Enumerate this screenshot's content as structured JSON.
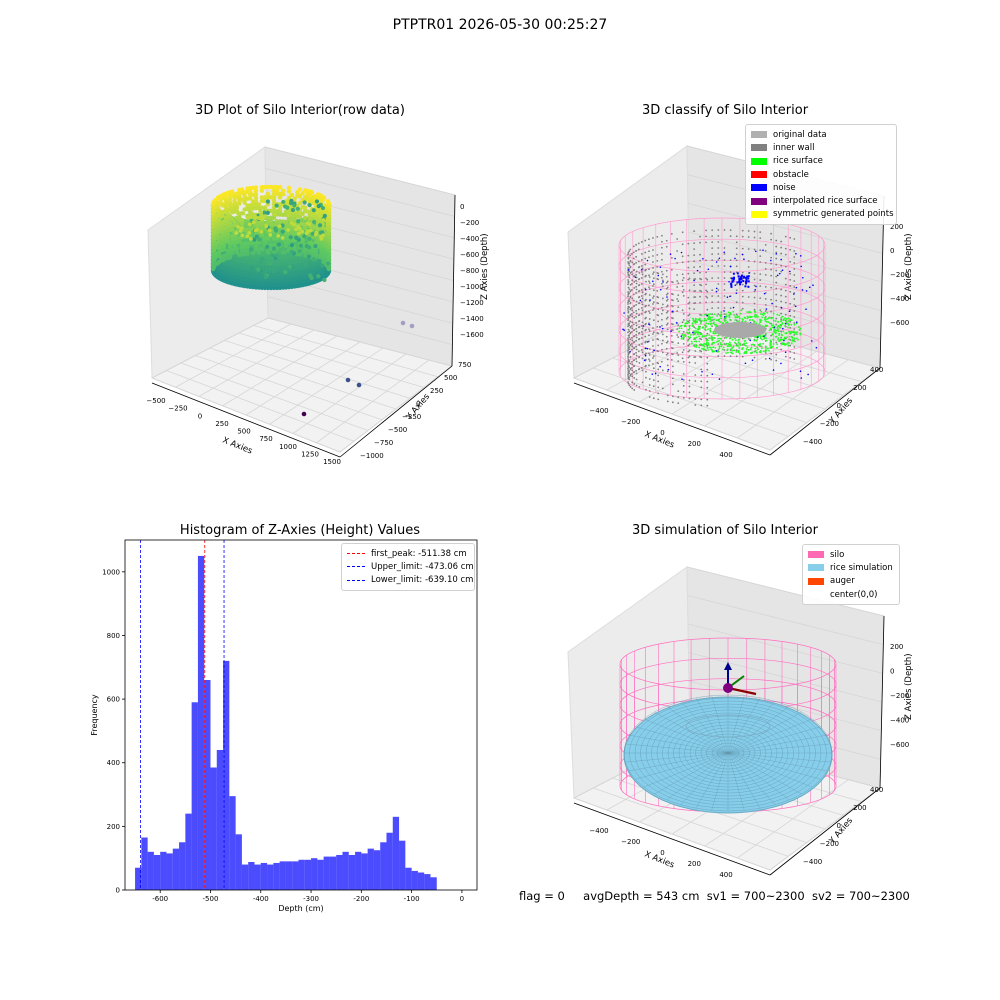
{
  "page": {
    "title": "PTPTR01 2026-05-30 00:25:27",
    "status": {
      "flag": "flag = 0",
      "avg_depth": "avgDepth = 543 cm",
      "sv1": "sv1 = 700~2300",
      "sv2": "sv2 = 700~2300"
    }
  },
  "chart_data": [
    {
      "type": "scatter",
      "title": "3D Plot of Silo Interior(row data)",
      "xlabel": "X Axies",
      "ylabel": "Y Axies",
      "zlabel": "Z Axies (Depth)",
      "x_ticks": [
        "−500",
        "−250",
        "0",
        "250",
        "500",
        "750",
        "1000",
        "1250",
        "1500"
      ],
      "y_ticks": [
        "−1000",
        "−750",
        "−500",
        "−250",
        "0",
        "250",
        "500",
        "750"
      ],
      "z_ticks": [
        "0",
        "−200",
        "−400",
        "−600",
        "−800",
        "−1000",
        "−1200",
        "−1400",
        "−1600"
      ],
      "colormap": "viridis",
      "outlier_points": [
        {
          "x": 1120,
          "y": -900,
          "z": -1700
        },
        {
          "x": 1120,
          "y": -400,
          "z": -1650
        },
        {
          "x": 1200,
          "y": -350,
          "z": -1620
        },
        {
          "x": 1400,
          "y": 300,
          "z": -1600
        },
        {
          "x": 1450,
          "y": 350,
          "z": -1600
        }
      ]
    },
    {
      "type": "scatter",
      "title": "3D classify of Silo Interior",
      "xlabel": "X Axies",
      "ylabel": "Y Axies",
      "zlabel": "Z Axies (Depth)",
      "x_ticks": [
        "−400",
        "−200",
        "0",
        "200",
        "400"
      ],
      "y_ticks": [
        "−400",
        "−200",
        "0",
        "200",
        "400"
      ],
      "z_ticks": [
        "200",
        "0",
        "−200",
        "−400",
        "−600"
      ],
      "legend": [
        {
          "label": "original data",
          "color": "#b0b0b0"
        },
        {
          "label": "inner wall",
          "color": "#808080"
        },
        {
          "label": "rice surface",
          "color": "#00ff00"
        },
        {
          "label": "obstacle",
          "color": "#ff0000"
        },
        {
          "label": "noise",
          "color": "#0000ff"
        },
        {
          "label": "interpolated rice surface",
          "color": "#800080"
        },
        {
          "label": "symmetric generated points",
          "color": "#ffff00"
        }
      ]
    },
    {
      "type": "bar",
      "title": "Histogram of Z-Axies (Height) Values",
      "xlabel": "Depth (cm)",
      "ylabel": "Frequency",
      "xlim": [
        -670,
        30
      ],
      "ylim": [
        0,
        1100
      ],
      "bin_start": -650,
      "bin_width": 12.5,
      "values": [
        70,
        165,
        120,
        110,
        120,
        115,
        130,
        150,
        240,
        590,
        1050,
        660,
        385,
        440,
        720,
        295,
        175,
        80,
        88,
        80,
        85,
        80,
        85,
        90,
        90,
        90,
        95,
        95,
        100,
        95,
        105,
        105,
        110,
        120,
        110,
        120,
        115,
        130,
        125,
        150,
        180,
        230,
        155,
        70,
        60,
        55,
        50,
        40
      ],
      "x_ticks": [
        -600,
        -500,
        -400,
        -300,
        -200,
        -100,
        0
      ],
      "y_ticks": [
        0,
        200,
        400,
        600,
        800,
        1000
      ],
      "bar_color": "#0000ff",
      "lines": [
        {
          "label": "first_peak: -511.38 cm",
          "x": -511.38,
          "color": "#ff0000"
        },
        {
          "label": "Upper_limit: -473.06 cm",
          "x": -473.06,
          "color": "#0000ff"
        },
        {
          "label": "Lower_limit: -639.10 cm",
          "x": -639.1,
          "color": "#0000ff"
        }
      ]
    },
    {
      "type": "scatter",
      "title": "3D simulation of Silo Interior",
      "xlabel": "X Axies",
      "ylabel": "Y Axies",
      "zlabel": "Z Axies (Depth)",
      "x_ticks": [
        "−400",
        "−200",
        "0",
        "200",
        "400"
      ],
      "y_ticks": [
        "−400",
        "−200",
        "0",
        "200",
        "400"
      ],
      "z_ticks": [
        "200",
        "0",
        "−200",
        "−400",
        "−600"
      ],
      "legend": [
        {
          "label": "silo",
          "color": "#ff69b4"
        },
        {
          "label": "rice simulation",
          "color": "#87ceeb"
        },
        {
          "label": "auger",
          "color": "#ff4500"
        },
        {
          "label": "center(0,0)",
          "color": ""
        }
      ]
    }
  ]
}
